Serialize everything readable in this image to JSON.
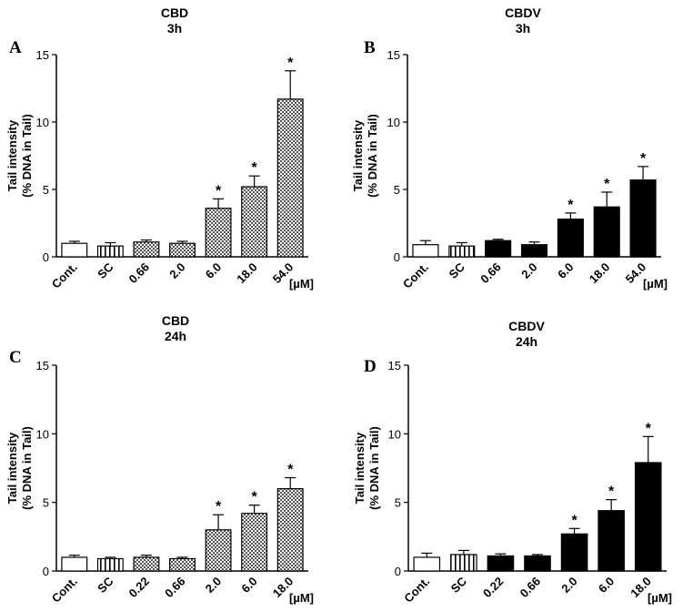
{
  "chart_data": [
    {
      "type": "bar",
      "letter": "A",
      "title_line1": "CBD",
      "title_line2": "3h",
      "ylabel_line1": "Tail intensity",
      "ylabel_line2": "(% DNA in Tail)",
      "unit": "[µM]",
      "ylim": [
        0,
        15
      ],
      "yticks": [
        "0",
        "5",
        "10",
        "15"
      ],
      "categories": [
        "Cont.",
        "SC",
        "0.66",
        "2.0",
        "6.0",
        "18.0",
        "54.0"
      ],
      "values": [
        1.0,
        0.8,
        1.1,
        1.0,
        3.6,
        5.2,
        11.7
      ],
      "errors": [
        0.15,
        0.25,
        0.15,
        0.15,
        0.7,
        0.8,
        2.1
      ],
      "fills": [
        "white",
        "stripes",
        "checker",
        "checker",
        "checker",
        "checker",
        "checker"
      ],
      "significant": [
        false,
        false,
        false,
        false,
        true,
        true,
        true
      ],
      "sig_marker": "*"
    },
    {
      "type": "bar",
      "letter": "B",
      "title_line1": "CBDV",
      "title_line2": "3h",
      "ylabel_line1": "Tail intensity",
      "ylabel_line2": "(% DNA in Tail)",
      "unit": "[µM]",
      "ylim": [
        0,
        15
      ],
      "yticks": [
        "0",
        "5",
        "10",
        "15"
      ],
      "categories": [
        "Cont.",
        "SC",
        "0.66",
        "2.0",
        "6.0",
        "18.0",
        "54.0"
      ],
      "values": [
        0.9,
        0.8,
        1.2,
        0.9,
        2.8,
        3.7,
        5.7
      ],
      "errors": [
        0.3,
        0.25,
        0.1,
        0.2,
        0.45,
        1.1,
        1.0
      ],
      "fills": [
        "white",
        "stripes",
        "black",
        "black",
        "black",
        "black",
        "black"
      ],
      "significant": [
        false,
        false,
        false,
        false,
        true,
        true,
        true
      ],
      "sig_marker": "*"
    },
    {
      "type": "bar",
      "letter": "C",
      "title_line1": "CBD",
      "title_line2": "24h",
      "ylabel_line1": "Tail intensity",
      "ylabel_line2": "(% DNA in Tail)",
      "unit": "[µM]",
      "ylim": [
        0,
        15
      ],
      "yticks": [
        "0",
        "5",
        "10",
        "15"
      ],
      "categories": [
        "Cont.",
        "SC",
        "0.22",
        "0.66",
        "2.0",
        "6.0",
        "18.0"
      ],
      "values": [
        1.0,
        0.9,
        1.0,
        0.9,
        3.0,
        4.2,
        6.0
      ],
      "errors": [
        0.15,
        0.1,
        0.15,
        0.1,
        1.1,
        0.6,
        0.8
      ],
      "fills": [
        "white",
        "stripes",
        "checker",
        "checker",
        "checker",
        "checker",
        "checker"
      ],
      "significant": [
        false,
        false,
        false,
        false,
        true,
        true,
        true
      ],
      "sig_marker": "*"
    },
    {
      "type": "bar",
      "letter": "D",
      "title_line1": "CBDV",
      "title_line2": "24h",
      "ylabel_line1": "Tail intensity",
      "ylabel_line2": "(% DNA in Tail)",
      "unit": "[µM]",
      "ylim": [
        0,
        15
      ],
      "yticks": [
        "0",
        "5",
        "10",
        "15"
      ],
      "categories": [
        "Cont.",
        "SC",
        "0.22",
        "0.66",
        "2.0",
        "6.0",
        "18.0"
      ],
      "values": [
        1.0,
        1.2,
        1.1,
        1.1,
        2.7,
        4.4,
        7.9
      ],
      "errors": [
        0.3,
        0.3,
        0.15,
        0.1,
        0.4,
        0.8,
        1.9
      ],
      "fills": [
        "white",
        "stripes",
        "black",
        "black",
        "black",
        "black",
        "black"
      ],
      "significant": [
        false,
        false,
        false,
        false,
        true,
        true,
        true
      ],
      "sig_marker": "*"
    }
  ]
}
